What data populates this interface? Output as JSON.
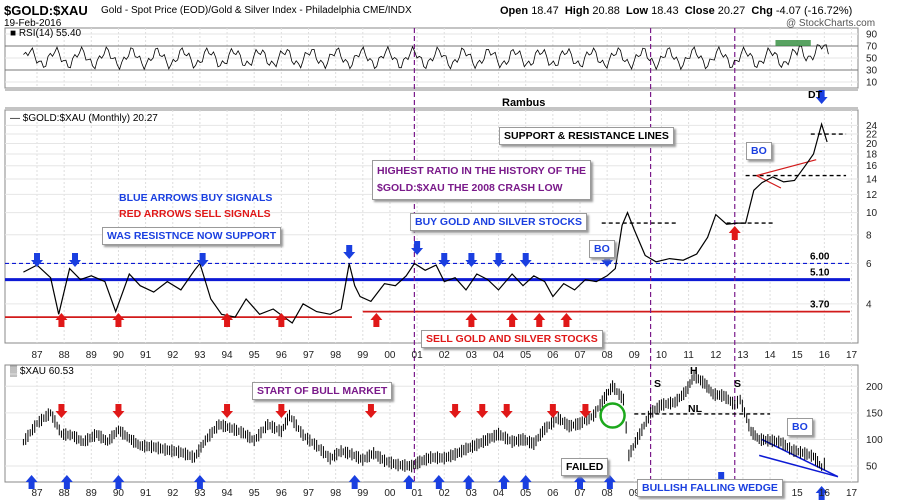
{
  "header": {
    "symbol": "$GOLD:$XAU",
    "description": "Gold - Spot Price (EOD)/Gold & Silver Index - Philadelphia  CME/INDX",
    "date": "19-Feb-2016",
    "open_label": "Open",
    "open": "18.47",
    "high_label": "High",
    "high": "20.88",
    "low_label": "Low",
    "low": "18.43",
    "close_label": "Close",
    "close": "20.27",
    "chg_label": "Chg",
    "chg": "-4.07 (-16.72%)",
    "watermark": "@ StockCharts.com"
  },
  "colors": {
    "buy": "#1a3fe0",
    "sell": "#e01818",
    "support": "#0d1ad4",
    "resist": "#d21a1a",
    "purple": "#7a1a8a",
    "rsi_fill": "#2e8b3a"
  },
  "annotations": {
    "rambus": "Rambus",
    "dt": "DT",
    "support_resistance": "SUPPORT & RESISTANCE LINES",
    "highest_ratio_1": "HIGHEST RATIO IN THE HISTORY OF THE",
    "highest_ratio_2": "$GOLD:$XAU THE 2008 CRASH LOW",
    "blue_arrows": "BLUE ARROWS BUY SIGNALS",
    "red_arrows": "RED ARROWS SELL SIGNALS",
    "resistance_support": "WAS RESISTNCE NOW SUPPORT",
    "buy_stocks": "BUY GOLD AND SILVER STOCKS",
    "sell_stocks": "SELL GOLD AND SILVER STOCKS",
    "bo1": "BO",
    "bo2": "BO",
    "bo3": "BO",
    "start_bull": "START OF BULL MARKET",
    "failed": "FAILED",
    "bullish_wedge": "BULLISH FALLING WEDGE",
    "s_left": "S",
    "h": "H",
    "s_right": "S",
    "nl": "NL"
  },
  "chart_data": [
    {
      "type": "line",
      "title": "RSI(14) 55.40",
      "ylim": [
        0,
        100
      ],
      "y_ticks": [
        "90",
        "70",
        "50",
        "30",
        "10"
      ],
      "x_range": [
        1986.5,
        2016.9
      ],
      "reference_levels": [
        70,
        30
      ],
      "series": [
        {
          "name": "RSI(14)",
          "last": 55.4
        }
      ]
    },
    {
      "type": "line",
      "title": "$GOLD:$XAU (Monthly) 20.27",
      "ylim": [
        2.7,
        28
      ],
      "log_scale": true,
      "y_ticks": [
        "24",
        "22",
        "20",
        "18",
        "16",
        "14",
        "12",
        "10",
        "8",
        "6",
        "4"
      ],
      "x_labels": [
        "87",
        "88",
        "89",
        "90",
        "91",
        "92",
        "93",
        "94",
        "95",
        "96",
        "97",
        "98",
        "99",
        "00",
        "01",
        "02",
        "03",
        "04",
        "05",
        "06",
        "07",
        "08",
        "09",
        "10",
        "11",
        "12",
        "13",
        "14",
        "15",
        "16",
        "17"
      ],
      "horizontal_lines": [
        {
          "label": "6.00",
          "value": 6.0
        },
        {
          "label": "5.10",
          "value": 5.1
        },
        {
          "label": "3.70",
          "value": 3.7
        }
      ],
      "series": [
        {
          "name": "$GOLD:$XAU",
          "x": [
            1986.5,
            1987.0,
            1987.5,
            1987.8,
            1988.2,
            1988.6,
            1989.0,
            1989.5,
            1989.9,
            1990.4,
            1990.8,
            1991.3,
            1991.8,
            1992.3,
            1992.8,
            1993.0,
            1993.4,
            1993.8,
            1994.3,
            1994.7,
            1995.2,
            1995.7,
            1996.1,
            1996.4,
            1996.8,
            1997.3,
            1997.8,
            1998.2,
            1998.5,
            1998.7,
            1998.9,
            1999.3,
            1999.8,
            2000.2,
            2000.6,
            2000.9,
            2001.3,
            2001.7,
            2002.0,
            2002.4,
            2002.8,
            2003.2,
            2003.6,
            2004.0,
            2004.5,
            2004.9,
            2005.3,
            2005.7,
            2006.0,
            2006.4,
            2006.8,
            2007.2,
            2007.6,
            2008.0,
            2008.3,
            2008.55,
            2008.75,
            2009.0,
            2009.4,
            2009.8,
            2010.3,
            2010.8,
            2011.3,
            2011.7,
            2012.0,
            2012.4,
            2012.8,
            2013.1,
            2013.4,
            2013.7,
            2014.1,
            2014.5,
            2014.9,
            2015.3,
            2015.6,
            2015.9,
            2016.1
          ],
          "values": [
            5.5,
            5.9,
            5.2,
            3.6,
            5.7,
            5.1,
            5.3,
            5.0,
            3.7,
            5.4,
            4.8,
            4.5,
            5.0,
            4.6,
            5.6,
            6.0,
            4.2,
            3.6,
            3.5,
            4.2,
            3.6,
            3.8,
            3.5,
            3.3,
            4.0,
            3.7,
            3.6,
            3.8,
            6.0,
            4.8,
            4.3,
            4.1,
            4.9,
            4.8,
            5.3,
            6.0,
            5.6,
            5.9,
            5.0,
            5.2,
            4.6,
            5.4,
            5.1,
            4.6,
            5.4,
            4.8,
            5.3,
            5.0,
            4.3,
            4.9,
            4.6,
            5.1,
            5.0,
            5.3,
            5.7,
            8.8,
            10.0,
            8.4,
            6.5,
            6.1,
            6.3,
            6.2,
            6.6,
            7.8,
            9.8,
            8.9,
            9.0,
            9.0,
            12.5,
            13.5,
            14.3,
            13.6,
            13.8,
            16.0,
            18.0,
            24.3,
            20.3
          ]
        }
      ]
    },
    {
      "type": "line",
      "title": "$XAU 60.53",
      "ylim": [
        20,
        240
      ],
      "y_ticks": [
        "200",
        "150",
        "100",
        "50"
      ],
      "x_labels": [
        "87",
        "88",
        "89",
        "90",
        "91",
        "92",
        "93",
        "94",
        "95",
        "96",
        "97",
        "98",
        "99",
        "00",
        "01",
        "02",
        "03",
        "04",
        "05",
        "06",
        "07",
        "08",
        "09",
        "10",
        "11",
        "12",
        "13",
        "14",
        "15",
        "16",
        "17"
      ],
      "horizontal_lines": [
        {
          "label": "NL",
          "value": 148
        }
      ],
      "series": [
        {
          "name": "$XAU",
          "x": [
            1986.5,
            1987.0,
            1987.5,
            1987.9,
            1988.3,
            1988.7,
            1989.2,
            1989.6,
            1990.0,
            1990.4,
            1990.8,
            1991.3,
            1991.8,
            1992.3,
            1992.8,
            1993.2,
            1993.7,
            1994.1,
            1994.6,
            1995.0,
            1995.5,
            1996.0,
            1996.3,
            1996.8,
            1997.3,
            1997.8,
            1998.2,
            1998.6,
            1999.0,
            1999.4,
            1999.8,
            2000.3,
            2000.8,
            2001.1,
            2001.5,
            2002.0,
            2002.4,
            2002.8,
            2003.2,
            2003.6,
            2004.0,
            2004.5,
            2004.9,
            2005.3,
            2005.7,
            2006.2,
            2006.6,
            2007.0,
            2007.5,
            2007.9,
            2008.2,
            2008.6,
            2008.8,
            2009.2,
            2009.6,
            2010.0,
            2010.5,
            2010.9,
            2011.2,
            2011.6,
            2011.9,
            2012.3,
            2012.7,
            2012.9,
            2013.3,
            2013.6,
            2014.0,
            2014.4,
            2014.8,
            2015.2,
            2015.6,
            2015.9,
            2016.1
          ],
          "values": [
            95,
            130,
            150,
            110,
            108,
            95,
            110,
            96,
            118,
            102,
            88,
            86,
            80,
            76,
            66,
            98,
            128,
            122,
            112,
            98,
            128,
            115,
            145,
            108,
            88,
            64,
            78,
            72,
            62,
            74,
            60,
            52,
            50,
            58,
            66,
            65,
            72,
            82,
            90,
            100,
            110,
            96,
            100,
            92,
            120,
            140,
            125,
            130,
            145,
            178,
            200,
            175,
            70,
            110,
            150,
            165,
            170,
            190,
            220,
            205,
            185,
            182,
            165,
            175,
            115,
            100,
            98,
            95,
            80,
            75,
            68,
            48,
            60
          ]
        }
      ]
    }
  ]
}
